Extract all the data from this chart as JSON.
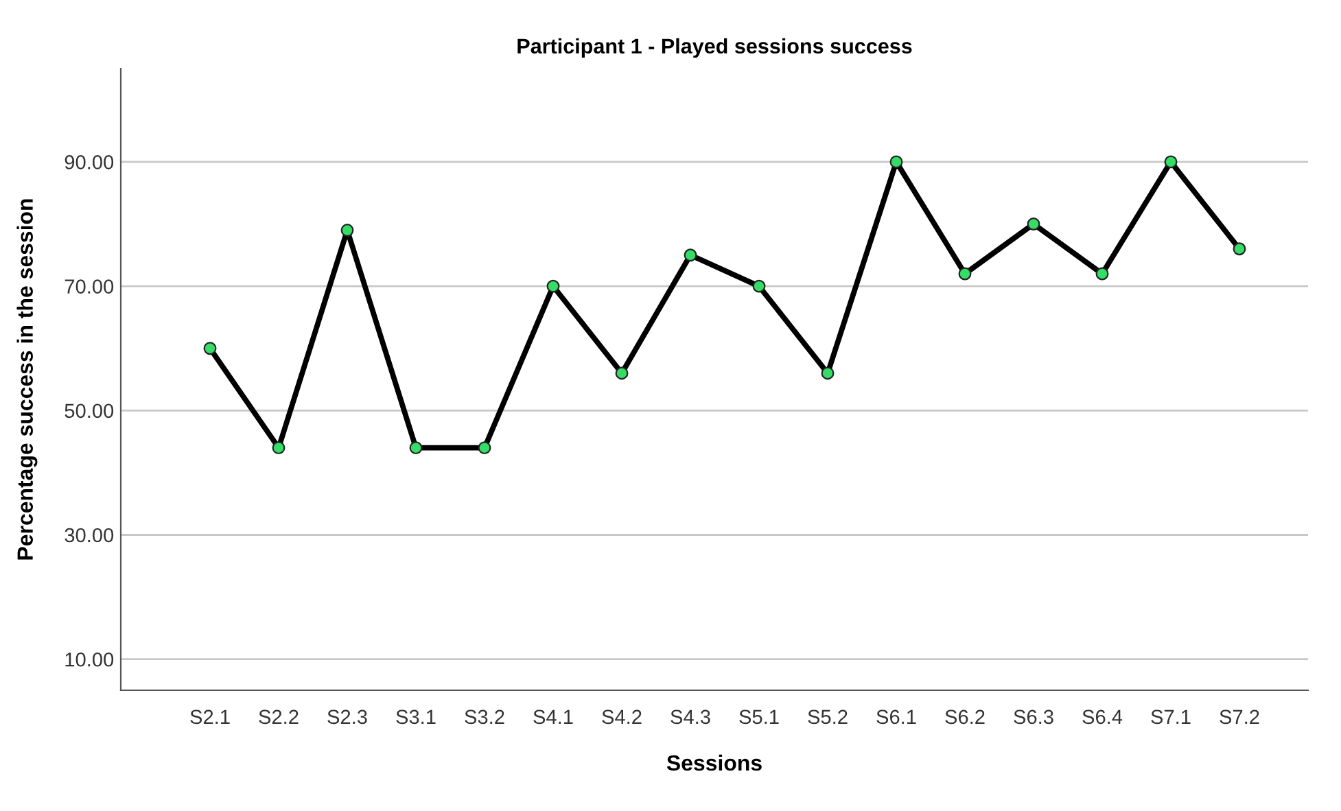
{
  "chart_data": {
    "type": "line",
    "title": "Participant 1 - Played sessions success",
    "xlabel": "Sessions",
    "ylabel": "Percentage success in the session",
    "categories": [
      "S2.1",
      "S2.2",
      "S2.3",
      "S3.1",
      "S3.2",
      "S4.1",
      "S4.2",
      "S4.3",
      "S5.1",
      "S5.2",
      "S6.1",
      "S6.2",
      "S6.3",
      "S6.4",
      "S7.1",
      "S7.2"
    ],
    "series": [
      {
        "color": "#000000",
        "values": [
          60,
          44,
          79,
          44,
          44,
          70,
          56,
          75,
          70,
          56,
          90,
          72,
          80,
          72,
          90,
          76
        ]
      }
    ],
    "ylim": [
      5,
      105
    ],
    "yticks": [
      {
        "value": 10,
        "label": "10.00"
      },
      {
        "value": 30,
        "label": "30.00"
      },
      {
        "value": 50,
        "label": "50.00"
      },
      {
        "value": 70,
        "label": "70.00"
      },
      {
        "value": 90,
        "label": "90.00"
      }
    ],
    "grid": "y",
    "marker": "circle",
    "line_style": "solid"
  }
}
